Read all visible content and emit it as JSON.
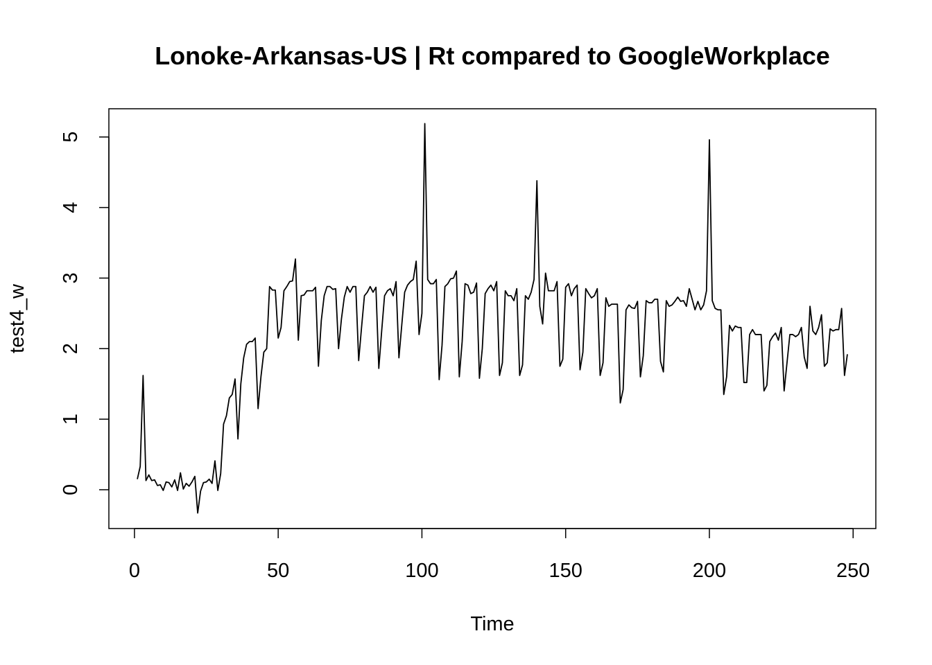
{
  "chart_data": {
    "type": "line",
    "title": "Lonoke-Arkansas-US | Rt compared to GoogleWorkplace",
    "xlabel": "Time",
    "ylabel": "test4_w",
    "xlim": [
      -8.9,
      257.9
    ],
    "ylim": [
      -0.55,
      5.4
    ],
    "x_ticks": [
      0,
      50,
      100,
      150,
      200,
      250
    ],
    "y_ticks": [
      0,
      1,
      2,
      3,
      4,
      5
    ],
    "grid": false,
    "legend": "none",
    "series": [
      {
        "color": "#000000",
        "x": [
          1,
          2,
          3,
          4,
          5,
          6,
          7,
          8,
          9,
          10,
          11,
          12,
          13,
          14,
          15,
          16,
          17,
          18,
          19,
          20,
          21,
          22,
          23,
          24,
          25,
          26,
          27,
          28,
          29,
          30,
          31,
          32,
          33,
          34,
          35,
          36,
          37,
          38,
          39,
          40,
          41,
          42,
          43,
          44,
          45,
          46,
          47,
          48,
          49,
          50,
          51,
          52,
          53,
          54,
          55,
          56,
          57,
          58,
          59,
          60,
          61,
          62,
          63,
          64,
          65,
          66,
          67,
          68,
          69,
          70,
          71,
          72,
          73,
          74,
          75,
          76,
          77,
          78,
          79,
          80,
          81,
          82,
          83,
          84,
          85,
          86,
          87,
          88,
          89,
          90,
          91,
          92,
          93,
          94,
          95,
          96,
          97,
          98,
          99,
          100,
          101,
          102,
          103,
          104,
          105,
          106,
          107,
          108,
          109,
          110,
          111,
          112,
          113,
          114,
          115,
          116,
          117,
          118,
          119,
          120,
          121,
          122,
          123,
          124,
          125,
          126,
          127,
          128,
          129,
          130,
          131,
          132,
          133,
          134,
          135,
          136,
          137,
          138,
          139,
          140,
          141,
          142,
          143,
          144,
          145,
          146,
          147,
          148,
          149,
          150,
          151,
          152,
          153,
          154,
          155,
          156,
          157,
          158,
          159,
          160,
          161,
          162,
          163,
          164,
          165,
          166,
          167,
          168,
          169,
          170,
          171,
          172,
          173,
          174,
          175,
          176,
          177,
          178,
          179,
          180,
          181,
          182,
          183,
          184,
          185,
          186,
          187,
          188,
          189,
          190,
          191,
          192,
          193,
          194,
          195,
          196,
          197,
          198,
          199,
          200,
          201,
          202,
          203,
          204,
          205,
          206,
          207,
          208,
          209,
          210,
          211,
          212,
          213,
          214,
          215,
          216,
          217,
          218,
          219,
          220,
          221,
          222,
          223,
          224,
          225,
          226,
          227,
          228,
          229,
          230,
          231,
          232,
          233,
          234,
          235,
          236,
          237,
          238,
          239,
          240,
          241,
          242,
          243,
          244,
          245,
          246,
          247,
          248
        ],
        "values": [
          0.15,
          0.33,
          1.62,
          0.13,
          0.21,
          0.13,
          0.14,
          0.06,
          0.07,
          -0.01,
          0.11,
          0.1,
          0.04,
          0.14,
          -0.01,
          0.24,
          0.01,
          0.09,
          0.05,
          0.11,
          0.19,
          -0.33,
          -0.02,
          0.1,
          0.11,
          0.15,
          0.09,
          0.41,
          -0.01,
          0.23,
          0.93,
          1.05,
          1.3,
          1.35,
          1.57,
          0.72,
          1.5,
          1.87,
          2.06,
          2.1,
          2.1,
          2.15,
          1.15,
          1.6,
          1.95,
          2.0,
          2.88,
          2.83,
          2.83,
          2.15,
          2.3,
          2.82,
          2.88,
          2.95,
          2.96,
          3.27,
          2.12,
          2.75,
          2.76,
          2.82,
          2.82,
          2.82,
          2.87,
          1.75,
          2.4,
          2.75,
          2.88,
          2.88,
          2.84,
          2.85,
          2.0,
          2.42,
          2.73,
          2.88,
          2.8,
          2.88,
          2.88,
          1.83,
          2.3,
          2.75,
          2.8,
          2.88,
          2.8,
          2.87,
          1.72,
          2.25,
          2.75,
          2.82,
          2.85,
          2.75,
          2.95,
          1.87,
          2.34,
          2.8,
          2.9,
          2.95,
          2.98,
          3.24,
          2.2,
          2.5,
          5.19,
          2.98,
          2.92,
          2.92,
          2.98,
          1.56,
          2.05,
          2.88,
          2.92,
          2.99,
          3.0,
          3.1,
          1.6,
          2.1,
          2.92,
          2.9,
          2.78,
          2.8,
          2.93,
          1.58,
          2.0,
          2.78,
          2.85,
          2.9,
          2.82,
          2.95,
          1.62,
          1.8,
          2.82,
          2.75,
          2.75,
          2.68,
          2.85,
          1.62,
          1.77,
          2.75,
          2.7,
          2.8,
          2.98,
          4.38,
          2.6,
          2.35,
          3.07,
          2.82,
          2.82,
          2.82,
          2.95,
          1.75,
          1.85,
          2.87,
          2.92,
          2.75,
          2.85,
          2.9,
          1.7,
          1.95,
          2.85,
          2.78,
          2.72,
          2.75,
          2.85,
          1.62,
          1.8,
          2.72,
          2.6,
          2.63,
          2.63,
          2.63,
          1.23,
          1.42,
          2.55,
          2.62,
          2.58,
          2.57,
          2.67,
          1.6,
          1.9,
          2.68,
          2.65,
          2.65,
          2.7,
          2.7,
          1.82,
          1.67,
          2.68,
          2.6,
          2.62,
          2.67,
          2.73,
          2.67,
          2.68,
          2.6,
          2.85,
          2.7,
          2.55,
          2.67,
          2.55,
          2.62,
          2.82,
          4.96,
          2.68,
          2.57,
          2.55,
          2.55,
          1.35,
          1.6,
          2.33,
          2.25,
          2.32,
          2.3,
          2.3,
          1.52,
          1.52,
          2.2,
          2.27,
          2.2,
          2.2,
          2.2,
          1.4,
          1.48,
          2.1,
          2.17,
          2.22,
          2.12,
          2.3,
          1.4,
          1.8,
          2.2,
          2.2,
          2.17,
          2.2,
          2.3,
          1.88,
          1.72,
          2.6,
          2.25,
          2.2,
          2.3,
          2.48,
          1.75,
          1.8,
          2.28,
          2.25,
          2.27,
          2.27,
          2.57,
          1.62,
          1.92
        ]
      }
    ]
  }
}
